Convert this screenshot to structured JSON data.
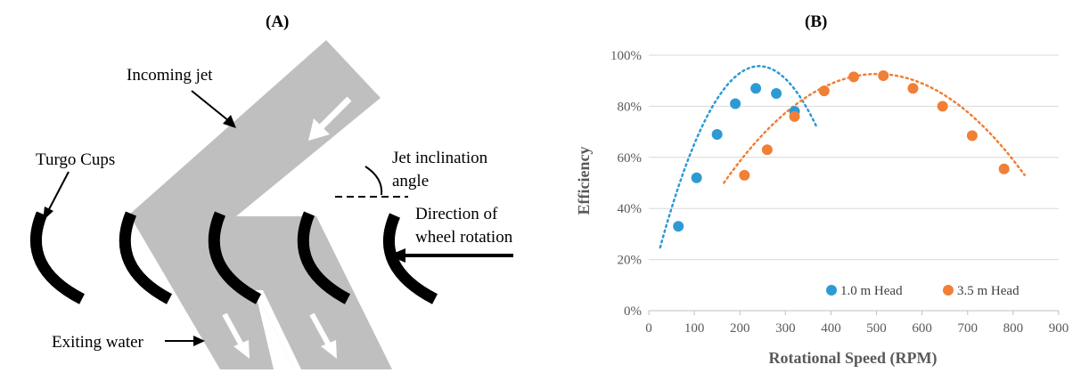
{
  "panel_a": {
    "label": "(A)",
    "annotations": {
      "incoming_jet": "Incoming jet",
      "turgo_cups": "Turgo Cups",
      "jet_angle_line1": "Jet inclination",
      "jet_angle_line2": "angle",
      "rotation_line1": "Direction of",
      "rotation_line2": "wheel rotation",
      "exiting_water": "Exiting water"
    },
    "colors": {
      "jet": "#bfbfbf",
      "cups": "#000000",
      "arrows": "#ffffff"
    }
  },
  "panel_b": {
    "label": "(B)"
  },
  "chart_data": {
    "type": "scatter",
    "title": "",
    "xlabel": "Rotational Speed (RPM)",
    "ylabel": "Efficiency",
    "xlim": [
      0,
      900
    ],
    "ylim": [
      0,
      100
    ],
    "x_ticks": [
      "0",
      "100",
      "200",
      "300",
      "400",
      "500",
      "600",
      "700",
      "800",
      "900"
    ],
    "y_ticks": [
      "0%",
      "20%",
      "40%",
      "60%",
      "80%",
      "100%"
    ],
    "grid": "horizontal",
    "legend_position": "bottom-right",
    "series": [
      {
        "name": "1.0 m Head",
        "color": "#2e9ad3",
        "x": [
          65,
          105,
          150,
          190,
          235,
          280,
          320
        ],
        "y": [
          33,
          52,
          69,
          81,
          87,
          85,
          78
        ],
        "trend": {
          "x": [
            25,
            370
          ],
          "coeffs": [
            7.5,
            0.7275,
            -0.0015
          ]
        }
      },
      {
        "name": "3.5 m Head",
        "color": "#f17f35",
        "x": [
          210,
          260,
          320,
          385,
          450,
          515,
          580,
          645,
          710,
          780
        ],
        "y": [
          53,
          63,
          76,
          86,
          91.5,
          92,
          87,
          80,
          68.5,
          55.5
        ],
        "trend": {
          "x": [
            165,
            825
          ],
          "coeffs": [
            -2,
            0.3778,
            -0.000377
          ]
        }
      }
    ]
  }
}
